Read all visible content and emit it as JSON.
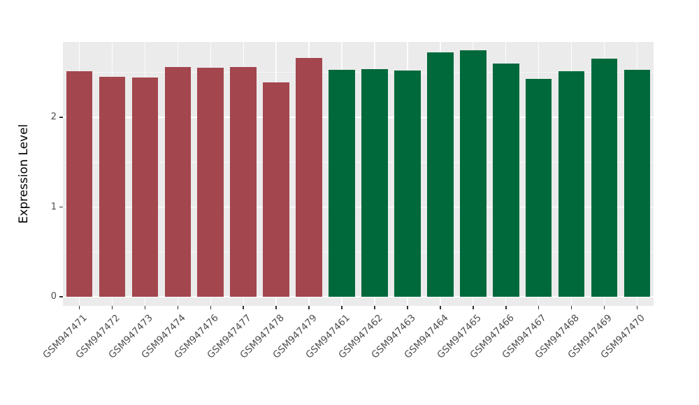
{
  "chart_data": {
    "type": "bar",
    "title": "",
    "xlabel": "",
    "ylabel": "Expression Level",
    "ylim": [
      -0.1,
      2.84
    ],
    "yticks": [
      0,
      1,
      2
    ],
    "minor_ticks": [
      0.5,
      1.5,
      2.5
    ],
    "grid": "on",
    "legend": "none",
    "panel_bg": "#EBEBEB",
    "grid_color": "#FFFFFF",
    "tick_text_color": "#4D4D4D",
    "categories": [
      "GSM947471",
      "GSM947472",
      "GSM947473",
      "GSM947474",
      "GSM947476",
      "GSM947477",
      "GSM947478",
      "GSM947479",
      "GSM947461",
      "GSM947462",
      "GSM947463",
      "GSM947464",
      "GSM947465",
      "GSM947466",
      "GSM947467",
      "GSM947468",
      "GSM947469",
      "GSM947470"
    ],
    "values": [
      2.51,
      2.45,
      2.44,
      2.56,
      2.55,
      2.56,
      2.39,
      2.66,
      2.53,
      2.54,
      2.52,
      2.72,
      2.75,
      2.6,
      2.43,
      2.51,
      2.65,
      2.53
    ],
    "bar_groups": [
      0,
      0,
      0,
      0,
      0,
      0,
      0,
      0,
      1,
      1,
      1,
      1,
      1,
      1,
      1,
      1,
      1,
      1
    ],
    "group_colors": [
      "#A3464E",
      "#00693C"
    ]
  }
}
